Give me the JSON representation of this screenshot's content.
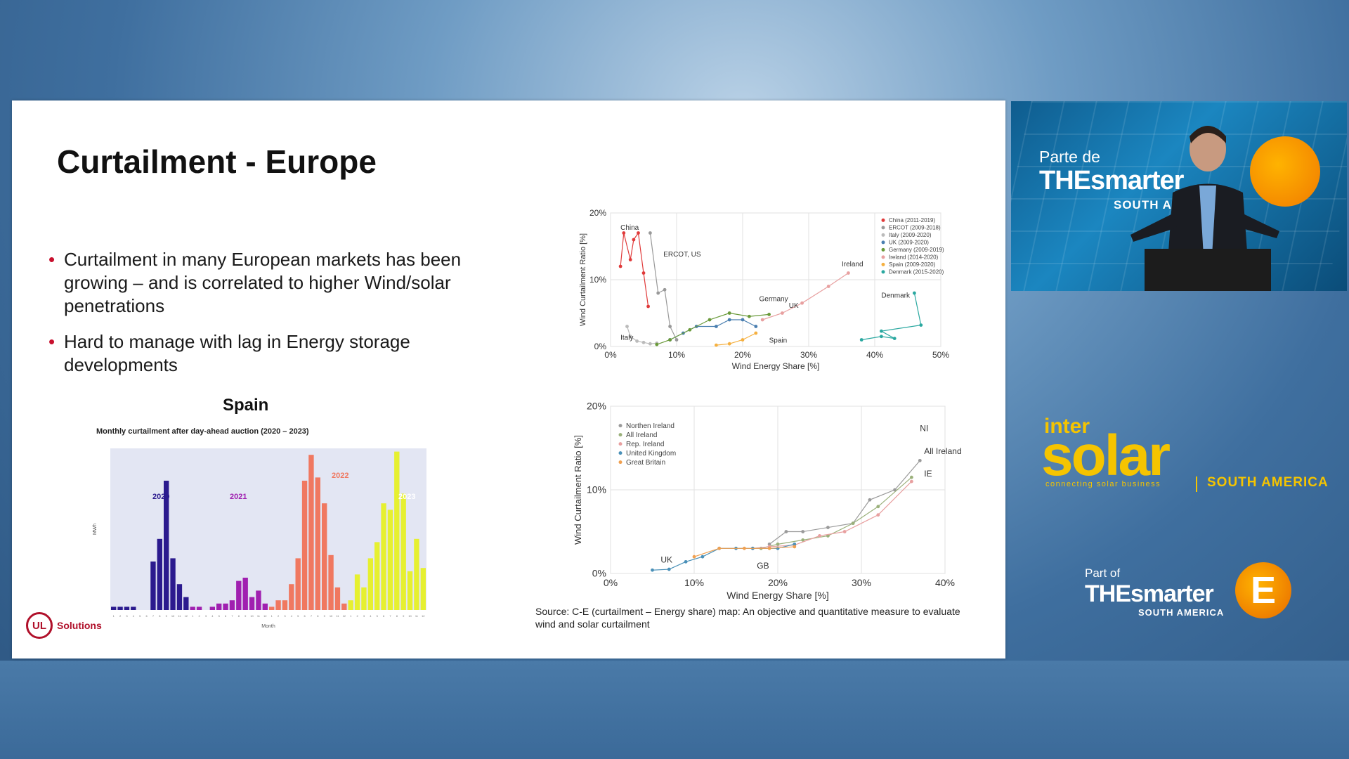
{
  "slide": {
    "title": "Curtailment - Europe",
    "bullets": [
      "Curtailment in many European markets has been growing – and is correlated to higher Wind/solar penetrations",
      "Hard to manage with lag in Energy storage developments"
    ],
    "spain_title": "Spain",
    "spain_subtitle": "Monthly curtailment after day-ahead auction (2020 – 2023)",
    "source_note": "Source: C-E (curtailment – Energy share) map: An objective and quantitative measure to evaluate wind and solar curtailment",
    "logo_text": "Solutions",
    "logo_mark": "UL"
  },
  "video": {
    "parte": "Parte de",
    "the_smarter": "THEsmarter",
    "south_america": "SOUTH AMERICA"
  },
  "intersolar": {
    "inter": "inter",
    "solar": "solar",
    "tagline": "connecting solar business",
    "region": "SOUTH AMERICA"
  },
  "partof": {
    "part_of": "Part of",
    "the_smarter": "THEsmarter",
    "south_america": "SOUTH AMERICA",
    "e": "E"
  },
  "colors": {
    "accent_red": "#c8102e",
    "yellow": "#f5c400",
    "c2020": "#2b1a8e",
    "c2021": "#a020b0",
    "c2022": "#f07860",
    "c2023": "#e6f030"
  },
  "chart_data": [
    {
      "type": "bar",
      "title": "Monthly curtailment after day-ahead auction (2020 – 2023)",
      "xlabel": "Month",
      "ylabel": "MWh",
      "year_labels": [
        "2020",
        "2021",
        "2022",
        "2023"
      ],
      "series": [
        {
          "name": "2020",
          "values": [
            1,
            1,
            1,
            1,
            0,
            0,
            15,
            22,
            40,
            16,
            8,
            4
          ]
        },
        {
          "name": "2021",
          "values": [
            1,
            1,
            0,
            1,
            2,
            2,
            3,
            9,
            10,
            4,
            6,
            2
          ]
        },
        {
          "name": "2022",
          "values": [
            1,
            3,
            3,
            8,
            16,
            40,
            48,
            41,
            33,
            17,
            7,
            2
          ]
        },
        {
          "name": "2023",
          "values": [
            3,
            11,
            7,
            16,
            21,
            33,
            31,
            49,
            36,
            12,
            22,
            13
          ]
        }
      ]
    },
    {
      "type": "scatter",
      "xlabel": "Wind Energy Share [%]",
      "ylabel": "Wind Curtailment Ratio [%]",
      "xlim": [
        0,
        50
      ],
      "ylim": [
        0,
        20
      ],
      "x_ticks": [
        "0%",
        "10%",
        "20%",
        "30%",
        "40%",
        "50%"
      ],
      "y_ticks": [
        "0%",
        "10%",
        "20%"
      ],
      "legend_position": "top-right",
      "annotations": [
        "China",
        "ERCOT, US",
        "Ireland",
        "Germany",
        "UK",
        "Denmark",
        "Italy",
        "Spain"
      ],
      "series": [
        {
          "name": "China (2011-2019)",
          "color": "#e03a3a",
          "points": [
            [
              1.5,
              12
            ],
            [
              2,
              17
            ],
            [
              3,
              13
            ],
            [
              3.5,
              16
            ],
            [
              4.2,
              17
            ],
            [
              5,
              11
            ],
            [
              5.7,
              6
            ]
          ]
        },
        {
          "name": "ERCOT (2009-2018)",
          "color": "#999999",
          "points": [
            [
              6,
              17
            ],
            [
              7.2,
              8
            ],
            [
              8.2,
              8.5
            ],
            [
              9,
              3
            ],
            [
              10,
              1
            ]
          ]
        },
        {
          "name": "Italy (2009-2020)",
          "color": "#bbbbbb",
          "points": [
            [
              2.5,
              3
            ],
            [
              3,
              1.5
            ],
            [
              4,
              0.8
            ],
            [
              5,
              0.6
            ],
            [
              6,
              0.4
            ],
            [
              7,
              0.5
            ]
          ]
        },
        {
          "name": "UK (2009-2020)",
          "color": "#4a7fb0",
          "points": [
            [
              9,
              1
            ],
            [
              11,
              2
            ],
            [
              13,
              3
            ],
            [
              16,
              3
            ],
            [
              18,
              4
            ],
            [
              20,
              4
            ],
            [
              22,
              3
            ]
          ]
        },
        {
          "name": "Germany (2009-2019)",
          "color": "#6a9a3a",
          "points": [
            [
              7,
              0.3
            ],
            [
              9,
              1
            ],
            [
              12,
              2.5
            ],
            [
              15,
              4
            ],
            [
              18,
              5
            ],
            [
              21,
              4.5
            ],
            [
              24,
              4.8
            ]
          ]
        },
        {
          "name": "Ireland (2014-2020)",
          "color": "#e8a0a0",
          "points": [
            [
              23,
              4
            ],
            [
              26,
              5
            ],
            [
              29,
              6.5
            ],
            [
              33,
              9
            ],
            [
              36,
              11
            ]
          ]
        },
        {
          "name": "Spain (2009-2020)",
          "color": "#f5b040",
          "points": [
            [
              16,
              0.2
            ],
            [
              18,
              0.4
            ],
            [
              20,
              1
            ],
            [
              22,
              2
            ]
          ]
        },
        {
          "name": "Denmark (2015-2020)",
          "color": "#2aa8a0",
          "points": [
            [
              38,
              1
            ],
            [
              41,
              1.5
            ],
            [
              43,
              1.2
            ],
            [
              41,
              2.3
            ],
            [
              47,
              3.2
            ],
            [
              46,
              8
            ]
          ]
        }
      ]
    },
    {
      "type": "scatter",
      "xlabel": "Wind Energy Share [%]",
      "ylabel": "Wind Curtailment Ratio [%]",
      "xlim": [
        0,
        40
      ],
      "ylim": [
        0,
        20
      ],
      "x_ticks": [
        "0%",
        "10%",
        "20%",
        "30%",
        "40%"
      ],
      "y_ticks": [
        "0%",
        "10%",
        "20%"
      ],
      "legend_position": "top-left",
      "annotations": [
        "NI",
        "All Ireland",
        "IE",
        "UK",
        "GB"
      ],
      "series": [
        {
          "name": "Northen Ireland",
          "color": "#9a9a9a",
          "points": [
            [
              19,
              3.5
            ],
            [
              21,
              5
            ],
            [
              23,
              5
            ],
            [
              26,
              5.5
            ],
            [
              29,
              6
            ],
            [
              31,
              8.8
            ],
            [
              34,
              10
            ],
            [
              37,
              13.5
            ]
          ]
        },
        {
          "name": "All Ireland",
          "color": "#9ab07a",
          "points": [
            [
              18,
              3
            ],
            [
              20,
              3.5
            ],
            [
              23,
              4
            ],
            [
              26,
              4.5
            ],
            [
              29,
              6
            ],
            [
              32,
              8
            ],
            [
              36,
              11.5
            ]
          ]
        },
        {
          "name": "Rep. Ireland",
          "color": "#e8a0a0",
          "points": [
            [
              17,
              3
            ],
            [
              19,
              3.2
            ],
            [
              22,
              3.4
            ],
            [
              25,
              4.5
            ],
            [
              28,
              5
            ],
            [
              32,
              7
            ],
            [
              36,
              11
            ]
          ]
        },
        {
          "name": "United Kingdom",
          "color": "#4a90b8",
          "points": [
            [
              5,
              0.4
            ],
            [
              7,
              0.5
            ],
            [
              9,
              1.4
            ],
            [
              11,
              2
            ],
            [
              13,
              3
            ],
            [
              15,
              3
            ],
            [
              17,
              3
            ],
            [
              20,
              3
            ],
            [
              22,
              3.5
            ]
          ]
        },
        {
          "name": "Great Britain",
          "color": "#f0a050",
          "points": [
            [
              10,
              2
            ],
            [
              13,
              3
            ],
            [
              16,
              3
            ],
            [
              19,
              3
            ],
            [
              22,
              3.2
            ]
          ]
        }
      ]
    }
  ]
}
